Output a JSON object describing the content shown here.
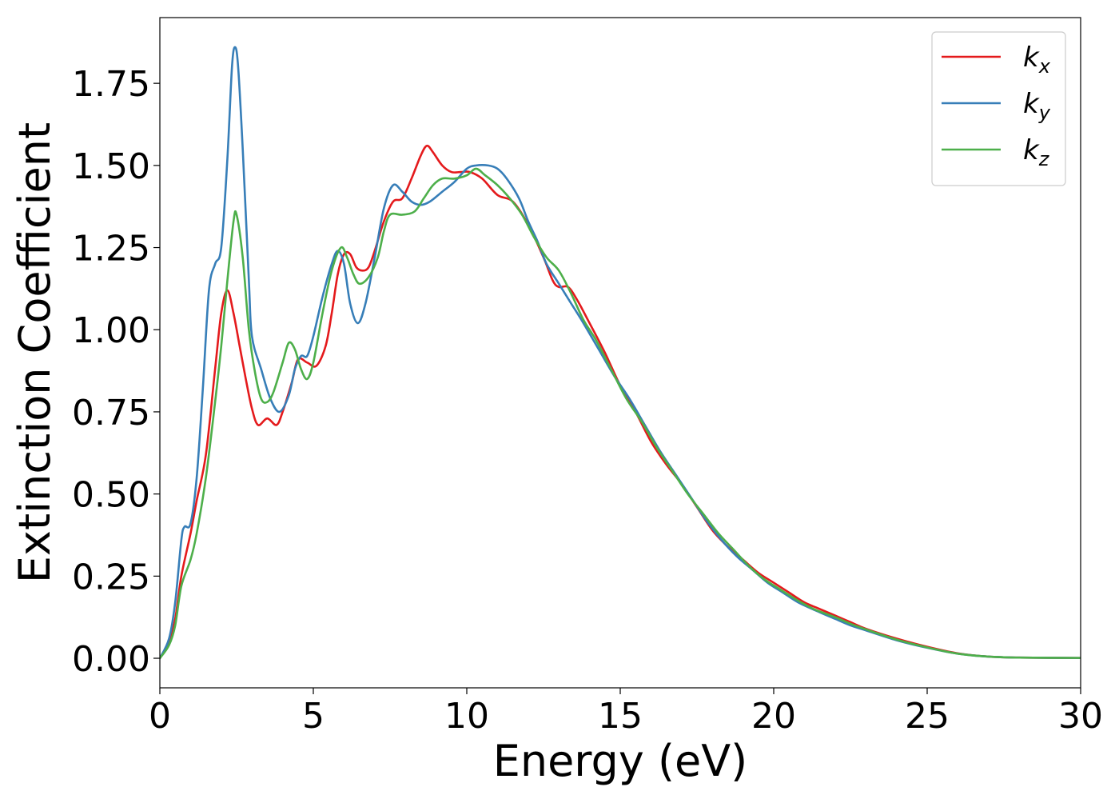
{
  "chart_data": {
    "type": "line",
    "xlabel": "Energy (eV)",
    "ylabel": "Extinction Coefficient",
    "xlim": [
      0,
      30
    ],
    "ylim": [
      -0.09,
      1.95
    ],
    "xticks": [
      0,
      5,
      10,
      15,
      20,
      25,
      30
    ],
    "xtick_labels": [
      "0",
      "5",
      "10",
      "15",
      "20",
      "25",
      "30"
    ],
    "yticks": [
      0.0,
      0.25,
      0.5,
      0.75,
      1.0,
      1.25,
      1.5,
      1.75
    ],
    "ytick_labels": [
      "0.00",
      "0.25",
      "0.50",
      "0.75",
      "1.00",
      "1.25",
      "1.50",
      "1.75"
    ],
    "grid": false,
    "legend_position": "top-right",
    "series": [
      {
        "name": "k_x",
        "legend_base": "k",
        "legend_sub": "x",
        "color": "#e41a1c",
        "points": [
          [
            0,
            0.0
          ],
          [
            0.3,
            0.05
          ],
          [
            0.5,
            0.12
          ],
          [
            0.7,
            0.25
          ],
          [
            1.0,
            0.38
          ],
          [
            1.2,
            0.48
          ],
          [
            1.5,
            0.62
          ],
          [
            1.8,
            0.88
          ],
          [
            2.0,
            1.05
          ],
          [
            2.2,
            1.12
          ],
          [
            2.4,
            1.05
          ],
          [
            2.6,
            0.95
          ],
          [
            2.8,
            0.85
          ],
          [
            3.0,
            0.76
          ],
          [
            3.2,
            0.71
          ],
          [
            3.5,
            0.73
          ],
          [
            3.8,
            0.71
          ],
          [
            4.0,
            0.75
          ],
          [
            4.3,
            0.84
          ],
          [
            4.5,
            0.91
          ],
          [
            4.8,
            0.9
          ],
          [
            5.1,
            0.89
          ],
          [
            5.4,
            0.95
          ],
          [
            5.6,
            1.05
          ],
          [
            5.8,
            1.17
          ],
          [
            6.0,
            1.23
          ],
          [
            6.2,
            1.23
          ],
          [
            6.4,
            1.19
          ],
          [
            6.6,
            1.18
          ],
          [
            6.8,
            1.19
          ],
          [
            7.0,
            1.24
          ],
          [
            7.3,
            1.33
          ],
          [
            7.6,
            1.39
          ],
          [
            7.9,
            1.4
          ],
          [
            8.2,
            1.46
          ],
          [
            8.5,
            1.53
          ],
          [
            8.7,
            1.56
          ],
          [
            8.9,
            1.54
          ],
          [
            9.2,
            1.5
          ],
          [
            9.5,
            1.48
          ],
          [
            9.8,
            1.48
          ],
          [
            10.1,
            1.48
          ],
          [
            10.5,
            1.46
          ],
          [
            11.0,
            1.41
          ],
          [
            11.5,
            1.39
          ],
          [
            12.0,
            1.32
          ],
          [
            12.5,
            1.22
          ],
          [
            12.8,
            1.15
          ],
          [
            13.0,
            1.13
          ],
          [
            13.3,
            1.13
          ],
          [
            13.6,
            1.09
          ],
          [
            14.0,
            1.02
          ],
          [
            14.5,
            0.93
          ],
          [
            15.0,
            0.83
          ],
          [
            15.5,
            0.75
          ],
          [
            16.0,
            0.66
          ],
          [
            16.5,
            0.59
          ],
          [
            17.0,
            0.53
          ],
          [
            17.5,
            0.46
          ],
          [
            18.0,
            0.39
          ],
          [
            18.5,
            0.34
          ],
          [
            19.0,
            0.3
          ],
          [
            19.5,
            0.26
          ],
          [
            20.0,
            0.23
          ],
          [
            20.5,
            0.2
          ],
          [
            21.0,
            0.17
          ],
          [
            21.5,
            0.15
          ],
          [
            22.0,
            0.13
          ],
          [
            22.5,
            0.11
          ],
          [
            23.0,
            0.09
          ],
          [
            24.0,
            0.06
          ],
          [
            25.0,
            0.035
          ],
          [
            26.0,
            0.015
          ],
          [
            27.0,
            0.005
          ],
          [
            28.0,
            0.002
          ],
          [
            30.0,
            0.001
          ]
        ]
      },
      {
        "name": "k_y",
        "legend_base": "k",
        "legend_sub": "y",
        "color": "#377eb8",
        "points": [
          [
            0,
            0.0
          ],
          [
            0.3,
            0.06
          ],
          [
            0.5,
            0.17
          ],
          [
            0.7,
            0.36
          ],
          [
            0.8,
            0.4
          ],
          [
            1.0,
            0.41
          ],
          [
            1.2,
            0.55
          ],
          [
            1.4,
            0.82
          ],
          [
            1.6,
            1.12
          ],
          [
            1.8,
            1.2
          ],
          [
            2.0,
            1.25
          ],
          [
            2.2,
            1.52
          ],
          [
            2.35,
            1.8
          ],
          [
            2.45,
            1.86
          ],
          [
            2.55,
            1.8
          ],
          [
            2.7,
            1.55
          ],
          [
            2.9,
            1.15
          ],
          [
            3.0,
            0.98
          ],
          [
            3.3,
            0.88
          ],
          [
            3.6,
            0.79
          ],
          [
            3.9,
            0.75
          ],
          [
            4.2,
            0.8
          ],
          [
            4.4,
            0.88
          ],
          [
            4.6,
            0.92
          ],
          [
            4.8,
            0.92
          ],
          [
            5.0,
            0.98
          ],
          [
            5.3,
            1.1
          ],
          [
            5.6,
            1.2
          ],
          [
            5.8,
            1.24
          ],
          [
            6.0,
            1.2
          ],
          [
            6.2,
            1.08
          ],
          [
            6.45,
            1.02
          ],
          [
            6.7,
            1.08
          ],
          [
            7.0,
            1.22
          ],
          [
            7.3,
            1.37
          ],
          [
            7.6,
            1.44
          ],
          [
            7.9,
            1.42
          ],
          [
            8.2,
            1.39
          ],
          [
            8.5,
            1.38
          ],
          [
            8.8,
            1.39
          ],
          [
            9.2,
            1.42
          ],
          [
            9.6,
            1.45
          ],
          [
            10.0,
            1.49
          ],
          [
            10.3,
            1.5
          ],
          [
            10.7,
            1.5
          ],
          [
            11.0,
            1.49
          ],
          [
            11.3,
            1.46
          ],
          [
            11.7,
            1.4
          ],
          [
            12.0,
            1.33
          ],
          [
            12.3,
            1.27
          ],
          [
            12.6,
            1.2
          ],
          [
            13.0,
            1.14
          ],
          [
            13.4,
            1.08
          ],
          [
            13.8,
            1.02
          ],
          [
            14.3,
            0.94
          ],
          [
            14.8,
            0.86
          ],
          [
            15.3,
            0.79
          ],
          [
            15.8,
            0.71
          ],
          [
            16.3,
            0.63
          ],
          [
            16.8,
            0.56
          ],
          [
            17.3,
            0.49
          ],
          [
            17.8,
            0.42
          ],
          [
            18.3,
            0.36
          ],
          [
            18.8,
            0.31
          ],
          [
            19.3,
            0.27
          ],
          [
            19.8,
            0.23
          ],
          [
            20.3,
            0.2
          ],
          [
            20.8,
            0.17
          ],
          [
            21.5,
            0.14
          ],
          [
            22.0,
            0.12
          ],
          [
            22.5,
            0.1
          ],
          [
            23.0,
            0.085
          ],
          [
            24.0,
            0.055
          ],
          [
            25.0,
            0.032
          ],
          [
            26.0,
            0.014
          ],
          [
            27.0,
            0.005
          ],
          [
            28.0,
            0.002
          ],
          [
            30.0,
            0.001
          ]
        ]
      },
      {
        "name": "k_z",
        "legend_base": "k",
        "legend_sub": "z",
        "color": "#4daf4a",
        "points": [
          [
            0,
            0.0
          ],
          [
            0.3,
            0.04
          ],
          [
            0.5,
            0.1
          ],
          [
            0.7,
            0.22
          ],
          [
            1.0,
            0.3
          ],
          [
            1.2,
            0.38
          ],
          [
            1.5,
            0.55
          ],
          [
            1.8,
            0.78
          ],
          [
            2.0,
            0.95
          ],
          [
            2.2,
            1.15
          ],
          [
            2.4,
            1.33
          ],
          [
            2.5,
            1.35
          ],
          [
            2.7,
            1.22
          ],
          [
            2.9,
            1.0
          ],
          [
            3.1,
            0.87
          ],
          [
            3.3,
            0.79
          ],
          [
            3.5,
            0.78
          ],
          [
            3.7,
            0.81
          ],
          [
            4.0,
            0.9
          ],
          [
            4.2,
            0.96
          ],
          [
            4.4,
            0.94
          ],
          [
            4.6,
            0.88
          ],
          [
            4.8,
            0.85
          ],
          [
            5.0,
            0.9
          ],
          [
            5.3,
            1.05
          ],
          [
            5.6,
            1.18
          ],
          [
            5.9,
            1.25
          ],
          [
            6.1,
            1.22
          ],
          [
            6.3,
            1.17
          ],
          [
            6.5,
            1.14
          ],
          [
            6.8,
            1.16
          ],
          [
            7.1,
            1.22
          ],
          [
            7.3,
            1.3
          ],
          [
            7.5,
            1.35
          ],
          [
            7.9,
            1.35
          ],
          [
            8.3,
            1.36
          ],
          [
            8.6,
            1.4
          ],
          [
            8.9,
            1.44
          ],
          [
            9.2,
            1.46
          ],
          [
            9.6,
            1.46
          ],
          [
            10.0,
            1.47
          ],
          [
            10.3,
            1.49
          ],
          [
            10.6,
            1.47
          ],
          [
            11.0,
            1.44
          ],
          [
            11.4,
            1.4
          ],
          [
            11.8,
            1.35
          ],
          [
            12.2,
            1.28
          ],
          [
            12.6,
            1.22
          ],
          [
            13.0,
            1.18
          ],
          [
            13.4,
            1.11
          ],
          [
            13.8,
            1.03
          ],
          [
            14.2,
            0.97
          ],
          [
            14.7,
            0.88
          ],
          [
            15.2,
            0.79
          ],
          [
            15.7,
            0.72
          ],
          [
            16.2,
            0.64
          ],
          [
            16.7,
            0.57
          ],
          [
            17.2,
            0.5
          ],
          [
            17.7,
            0.44
          ],
          [
            18.2,
            0.38
          ],
          [
            18.7,
            0.33
          ],
          [
            19.2,
            0.28
          ],
          [
            19.7,
            0.24
          ],
          [
            20.2,
            0.21
          ],
          [
            20.8,
            0.175
          ],
          [
            21.3,
            0.15
          ],
          [
            22.0,
            0.125
          ],
          [
            22.5,
            0.105
          ],
          [
            23.0,
            0.088
          ],
          [
            24.0,
            0.057
          ],
          [
            25.0,
            0.033
          ],
          [
            26.0,
            0.014
          ],
          [
            27.0,
            0.005
          ],
          [
            28.0,
            0.002
          ],
          [
            30.0,
            0.001
          ]
        ]
      }
    ]
  }
}
